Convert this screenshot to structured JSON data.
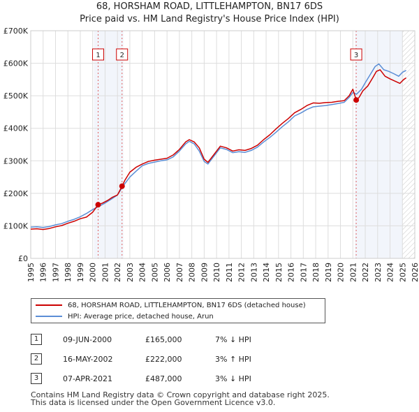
{
  "chart_data": {
    "type": "line",
    "title": "68, HORSHAM ROAD, LITTLEHAMPTON, BN17 6DS",
    "subtitle": "Price paid vs. HM Land Registry's House Price Index (HPI)",
    "xlim": [
      1995,
      2026
    ],
    "ylim": [
      0,
      700000
    ],
    "x_ticks": [
      "1995",
      "1996",
      "1997",
      "1998",
      "1999",
      "2000",
      "2001",
      "2002",
      "2003",
      "2004",
      "2005",
      "2006",
      "2007",
      "2008",
      "2009",
      "2010",
      "2011",
      "2012",
      "2013",
      "2014",
      "2015",
      "2016",
      "2017",
      "2018",
      "2019",
      "2020",
      "2021",
      "2022",
      "2023",
      "2024",
      "2025",
      "2026"
    ],
    "y_ticks": [
      {
        "value": 0,
        "label": "£0"
      },
      {
        "value": 100000,
        "label": "£100K"
      },
      {
        "value": 200000,
        "label": "£200K"
      },
      {
        "value": 300000,
        "label": "£300K"
      },
      {
        "value": 400000,
        "label": "£400K"
      },
      {
        "value": 500000,
        "label": "£500K"
      },
      {
        "value": 600000,
        "label": "£600K"
      },
      {
        "value": 700000,
        "label": "£700K"
      }
    ],
    "series": [
      {
        "name": "68, HORSHAM ROAD, LITTLEHAMPTON, BN17 6DS (detached house)",
        "color": "#cc0000",
        "x": [
          1995.0,
          1995.5,
          1996.0,
          1996.5,
          1997.0,
          1997.5,
          1998.0,
          1998.5,
          1999.0,
          1999.5,
          2000.0,
          2000.44,
          2000.8,
          2001.2,
          2001.6,
          2002.0,
          2002.37,
          2002.6,
          2003.0,
          2003.5,
          2004.0,
          2004.5,
          2005.0,
          2005.5,
          2006.0,
          2006.5,
          2007.0,
          2007.5,
          2007.8,
          2008.2,
          2008.6,
          2009.0,
          2009.3,
          2009.8,
          2010.3,
          2010.8,
          2011.3,
          2011.8,
          2012.3,
          2012.8,
          2013.3,
          2013.8,
          2014.3,
          2014.8,
          2015.3,
          2015.8,
          2016.3,
          2016.8,
          2017.3,
          2017.8,
          2018.3,
          2018.8,
          2019.3,
          2019.8,
          2020.3,
          2020.7,
          2021.0,
          2021.27,
          2021.5,
          2021.8,
          2022.2,
          2022.6,
          2022.9,
          2023.2,
          2023.6,
          2024.0,
          2024.4,
          2024.8,
          2025.1,
          2025.3
        ],
        "y": [
          90000,
          91000,
          89000,
          92000,
          97000,
          101000,
          108000,
          114000,
          122000,
          127000,
          142000,
          165000,
          170000,
          178000,
          188000,
          195000,
          222000,
          240000,
          265000,
          280000,
          290000,
          298000,
          302000,
          305000,
          308000,
          318000,
          335000,
          358000,
          365000,
          358000,
          340000,
          305000,
          295000,
          320000,
          345000,
          340000,
          330000,
          334000,
          332000,
          338000,
          348000,
          365000,
          380000,
          398000,
          415000,
          430000,
          448000,
          458000,
          470000,
          478000,
          477000,
          479000,
          480000,
          483000,
          485000,
          500000,
          520000,
          487000,
          495000,
          515000,
          530000,
          555000,
          575000,
          580000,
          560000,
          552000,
          545000,
          538000,
          550000,
          555000
        ]
      },
      {
        "name": "HPI: Average price, detached house, Arun",
        "color": "#5b8ed6",
        "x": [
          1995.0,
          1995.5,
          1996.0,
          1996.5,
          1997.0,
          1997.5,
          1998.0,
          1998.5,
          1999.0,
          1999.5,
          2000.0,
          2000.5,
          2001.0,
          2001.5,
          2002.0,
          2002.5,
          2003.0,
          2003.5,
          2004.0,
          2004.5,
          2005.0,
          2005.5,
          2006.0,
          2006.5,
          2007.0,
          2007.5,
          2007.8,
          2008.2,
          2008.6,
          2009.0,
          2009.3,
          2009.8,
          2010.3,
          2010.8,
          2011.3,
          2011.8,
          2012.3,
          2012.8,
          2013.3,
          2013.8,
          2014.3,
          2014.8,
          2015.3,
          2015.8,
          2016.3,
          2016.8,
          2017.3,
          2017.8,
          2018.3,
          2018.8,
          2019.3,
          2019.8,
          2020.3,
          2020.7,
          2021.0,
          2021.3,
          2021.7,
          2022.0,
          2022.4,
          2022.8,
          2023.1,
          2023.5,
          2023.9,
          2024.3,
          2024.7,
          2025.0,
          2025.3
        ],
        "y": [
          96000,
          97000,
          95000,
          98000,
          103000,
          107000,
          114000,
          120000,
          128000,
          138000,
          150000,
          160000,
          170000,
          182000,
          195000,
          225000,
          250000,
          268000,
          285000,
          292000,
          296000,
          300000,
          303000,
          312000,
          330000,
          352000,
          360000,
          352000,
          330000,
          298000,
          290000,
          315000,
          340000,
          335000,
          325000,
          328000,
          326000,
          332000,
          342000,
          358000,
          372000,
          388000,
          405000,
          420000,
          438000,
          447000,
          458000,
          466000,
          468000,
          470000,
          473000,
          476000,
          480000,
          495000,
          510000,
          505000,
          520000,
          540000,
          565000,
          590000,
          598000,
          580000,
          575000,
          568000,
          560000,
          572000,
          578000
        ]
      }
    ],
    "sales": [
      {
        "number": "1",
        "x": 2000.44,
        "price": 165000
      },
      {
        "number": "2",
        "x": 2002.37,
        "price": 222000
      },
      {
        "number": "3",
        "x": 2021.27,
        "price": 487000
      }
    ],
    "projection_start": 2025.0
  },
  "header": {
    "title": "68, HORSHAM ROAD, LITTLEHAMPTON, BN17 6DS",
    "subtitle": "Price paid vs. HM Land Registry's House Price Index (HPI)"
  },
  "legend": {
    "property_label": "68, HORSHAM ROAD, LITTLEHAMPTON, BN17 6DS (detached house)",
    "hpi_label": "HPI: Average price, detached house, Arun",
    "property_color": "#cc0000",
    "hpi_color": "#5b8ed6"
  },
  "sales_table": [
    {
      "num": "1",
      "date": "09-JUN-2000",
      "price": "£165,000",
      "hpi": "7% ↓ HPI"
    },
    {
      "num": "2",
      "date": "16-MAY-2002",
      "price": "£222,000",
      "hpi": "3% ↑ HPI"
    },
    {
      "num": "3",
      "date": "07-APR-2021",
      "price": "£487,000",
      "hpi": "3% ↓ HPI"
    }
  ],
  "footer": {
    "line1": "Contains HM Land Registry data © Crown copyright and database right 2025.",
    "line2": "This data is licensed under the Open Government Licence v3.0."
  }
}
